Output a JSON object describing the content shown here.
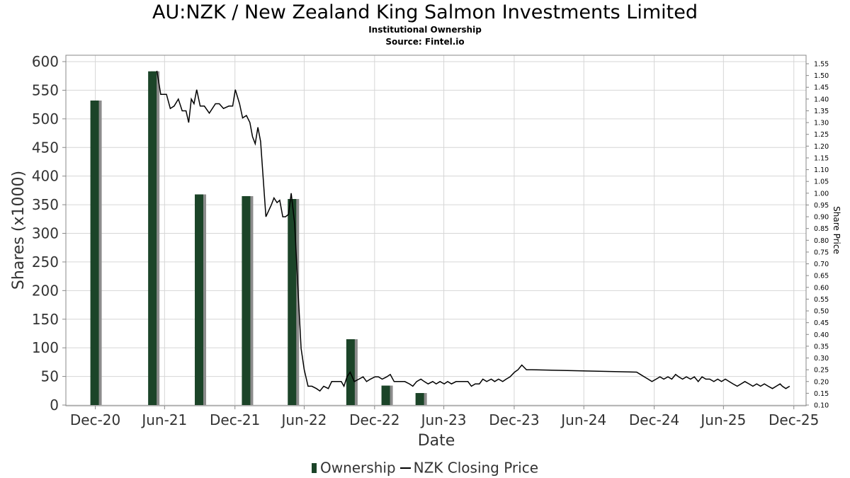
{
  "title": "AU:NZK / New Zealand King Salmon Investments Limited",
  "subtitle": "Institutional Ownership",
  "source": "Source: Fintel.io",
  "legend": {
    "ownership": "Ownership",
    "price": "NZK Closing Price"
  },
  "colors": {
    "bar": "#1b4428",
    "bar_shadow": "#8c8c8c",
    "line": "#000000",
    "grid": "#d6d6d6",
    "axis": "#888888"
  },
  "chart_data": {
    "type": "bar",
    "xlabel": "Date",
    "ylabel": "Shares (x1000)",
    "y2label": "Share Price",
    "x_ticks": [
      "Dec-20",
      "Jun-21",
      "Dec-21",
      "Jun-22",
      "Dec-22",
      "Jun-23",
      "Dec-23",
      "Jun-24",
      "Dec-24",
      "Jun-25",
      "Dec-25"
    ],
    "ylim": [
      0,
      600
    ],
    "y_ticks": [
      0,
      50,
      100,
      150,
      200,
      250,
      300,
      350,
      400,
      450,
      500,
      550,
      600
    ],
    "y2lim": [
      0.1,
      1.55
    ],
    "y2_ticks": [
      "0.10",
      "0.15",
      "0.20",
      "0.25",
      "0.30",
      "0.35",
      "0.40",
      "0.45",
      "0.50",
      "0.55",
      "0.60",
      "0.65",
      "0.70",
      "0.75",
      "0.80",
      "0.85",
      "0.90",
      "0.95",
      "1.00",
      "1.05",
      "1.10",
      "1.15",
      "1.20",
      "1.25",
      "1.30",
      "1.35",
      "1.40",
      "1.45",
      "1.50",
      "1.55"
    ],
    "grid": true,
    "legend_position": "bottom",
    "series": [
      {
        "name": "Ownership",
        "type": "bar",
        "axis": "left",
        "points": [
          {
            "x": "2020-12-31",
            "y": 532
          },
          {
            "x": "2021-05-31",
            "y": 583
          },
          {
            "x": "2021-09-30",
            "y": 368
          },
          {
            "x": "2022-01-31",
            "y": 365
          },
          {
            "x": "2022-05-31",
            "y": 360
          },
          {
            "x": "2022-10-31",
            "y": 115
          },
          {
            "x": "2023-01-31",
            "y": 34
          },
          {
            "x": "2023-04-30",
            "y": 21
          }
        ]
      },
      {
        "name": "NZK Closing Price",
        "type": "line",
        "axis": "right",
        "points": [
          {
            "x": "2021-06-10",
            "y": 1.52
          },
          {
            "x": "2021-06-20",
            "y": 1.42
          },
          {
            "x": "2021-07-05",
            "y": 1.42
          },
          {
            "x": "2021-07-15",
            "y": 1.36
          },
          {
            "x": "2021-07-25",
            "y": 1.37
          },
          {
            "x": "2021-08-05",
            "y": 1.4
          },
          {
            "x": "2021-08-15",
            "y": 1.35
          },
          {
            "x": "2021-08-25",
            "y": 1.35
          },
          {
            "x": "2021-09-01",
            "y": 1.3
          },
          {
            "x": "2021-09-08",
            "y": 1.4
          },
          {
            "x": "2021-09-15",
            "y": 1.38
          },
          {
            "x": "2021-09-22",
            "y": 1.44
          },
          {
            "x": "2021-10-01",
            "y": 1.37
          },
          {
            "x": "2021-10-12",
            "y": 1.37
          },
          {
            "x": "2021-10-25",
            "y": 1.34
          },
          {
            "x": "2021-11-10",
            "y": 1.38
          },
          {
            "x": "2021-11-20",
            "y": 1.38
          },
          {
            "x": "2021-12-01",
            "y": 1.36
          },
          {
            "x": "2021-12-15",
            "y": 1.37
          },
          {
            "x": "2021-12-25",
            "y": 1.37
          },
          {
            "x": "2022-01-01",
            "y": 1.44
          },
          {
            "x": "2022-01-12",
            "y": 1.38
          },
          {
            "x": "2022-01-20",
            "y": 1.32
          },
          {
            "x": "2022-01-30",
            "y": 1.33
          },
          {
            "x": "2022-02-08",
            "y": 1.3
          },
          {
            "x": "2022-02-15",
            "y": 1.24
          },
          {
            "x": "2022-02-22",
            "y": 1.21
          },
          {
            "x": "2022-03-01",
            "y": 1.28
          },
          {
            "x": "2022-03-08",
            "y": 1.22
          },
          {
            "x": "2022-03-22",
            "y": 0.9
          },
          {
            "x": "2022-04-05",
            "y": 0.95
          },
          {
            "x": "2022-04-12",
            "y": 0.98
          },
          {
            "x": "2022-04-20",
            "y": 0.96
          },
          {
            "x": "2022-04-27",
            "y": 0.97
          },
          {
            "x": "2022-05-05",
            "y": 0.9
          },
          {
            "x": "2022-05-12",
            "y": 0.9
          },
          {
            "x": "2022-05-20",
            "y": 0.91
          },
          {
            "x": "2022-05-27",
            "y": 1.0
          },
          {
            "x": "2022-06-05",
            "y": 0.87
          },
          {
            "x": "2022-06-15",
            "y": 0.55
          },
          {
            "x": "2022-06-22",
            "y": 0.34
          },
          {
            "x": "2022-06-30",
            "y": 0.25
          },
          {
            "x": "2022-07-10",
            "y": 0.18
          },
          {
            "x": "2022-07-20",
            "y": 0.18
          },
          {
            "x": "2022-08-01",
            "y": 0.17
          },
          {
            "x": "2022-08-10",
            "y": 0.16
          },
          {
            "x": "2022-08-20",
            "y": 0.18
          },
          {
            "x": "2022-09-01",
            "y": 0.17
          },
          {
            "x": "2022-09-10",
            "y": 0.2
          },
          {
            "x": "2022-09-25",
            "y": 0.2
          },
          {
            "x": "2022-10-05",
            "y": 0.2
          },
          {
            "x": "2022-10-12",
            "y": 0.18
          },
          {
            "x": "2022-10-20",
            "y": 0.22
          },
          {
            "x": "2022-10-28",
            "y": 0.24
          },
          {
            "x": "2022-11-08",
            "y": 0.2
          },
          {
            "x": "2022-11-20",
            "y": 0.21
          },
          {
            "x": "2022-12-01",
            "y": 0.22
          },
          {
            "x": "2022-12-10",
            "y": 0.2
          },
          {
            "x": "2022-12-20",
            "y": 0.21
          },
          {
            "x": "2023-01-01",
            "y": 0.22
          },
          {
            "x": "2023-01-10",
            "y": 0.22
          },
          {
            "x": "2023-01-20",
            "y": 0.21
          },
          {
            "x": "2023-02-01",
            "y": 0.22
          },
          {
            "x": "2023-02-10",
            "y": 0.23
          },
          {
            "x": "2023-02-20",
            "y": 0.2
          },
          {
            "x": "2023-03-01",
            "y": 0.2
          },
          {
            "x": "2023-03-10",
            "y": 0.2
          },
          {
            "x": "2023-03-20",
            "y": 0.2
          },
          {
            "x": "2023-04-01",
            "y": 0.19
          },
          {
            "x": "2023-04-10",
            "y": 0.18
          },
          {
            "x": "2023-04-20",
            "y": 0.2
          },
          {
            "x": "2023-05-01",
            "y": 0.21
          },
          {
            "x": "2023-05-10",
            "y": 0.2
          },
          {
            "x": "2023-05-20",
            "y": 0.19
          },
          {
            "x": "2023-06-01",
            "y": 0.2
          },
          {
            "x": "2023-06-10",
            "y": 0.19
          },
          {
            "x": "2023-06-20",
            "y": 0.2
          },
          {
            "x": "2023-07-01",
            "y": 0.19
          },
          {
            "x": "2023-07-10",
            "y": 0.2
          },
          {
            "x": "2023-07-20",
            "y": 0.19
          },
          {
            "x": "2023-08-01",
            "y": 0.2
          },
          {
            "x": "2023-08-10",
            "y": 0.2
          },
          {
            "x": "2023-08-20",
            "y": 0.2
          },
          {
            "x": "2023-09-01",
            "y": 0.2
          },
          {
            "x": "2023-09-10",
            "y": 0.18
          },
          {
            "x": "2023-09-20",
            "y": 0.19
          },
          {
            "x": "2023-10-01",
            "y": 0.19
          },
          {
            "x": "2023-10-10",
            "y": 0.21
          },
          {
            "x": "2023-10-20",
            "y": 0.2
          },
          {
            "x": "2023-11-01",
            "y": 0.21
          },
          {
            "x": "2023-11-10",
            "y": 0.2
          },
          {
            "x": "2023-11-20",
            "y": 0.21
          },
          {
            "x": "2023-12-01",
            "y": 0.2
          },
          {
            "x": "2023-12-10",
            "y": 0.21
          },
          {
            "x": "2023-12-20",
            "y": 0.22
          },
          {
            "x": "2024-01-01",
            "y": 0.24
          },
          {
            "x": "2024-01-10",
            "y": 0.25
          },
          {
            "x": "2024-01-20",
            "y": 0.27
          },
          {
            "x": "2024-02-01",
            "y": 0.25
          },
          {
            "x": "2024-02-15",
            "y": 0.25
          },
          {
            "x": "2024-11-15",
            "y": 0.24
          },
          {
            "x": "2024-11-25",
            "y": 0.23
          },
          {
            "x": "2024-12-05",
            "y": 0.22
          },
          {
            "x": "2024-12-15",
            "y": 0.21
          },
          {
            "x": "2024-12-25",
            "y": 0.2
          },
          {
            "x": "2025-01-05",
            "y": 0.21
          },
          {
            "x": "2025-01-15",
            "y": 0.22
          },
          {
            "x": "2025-01-25",
            "y": 0.21
          },
          {
            "x": "2025-02-05",
            "y": 0.22
          },
          {
            "x": "2025-02-15",
            "y": 0.21
          },
          {
            "x": "2025-02-25",
            "y": 0.23
          },
          {
            "x": "2025-03-05",
            "y": 0.22
          },
          {
            "x": "2025-03-15",
            "y": 0.21
          },
          {
            "x": "2025-03-25",
            "y": 0.22
          },
          {
            "x": "2025-04-05",
            "y": 0.21
          },
          {
            "x": "2025-04-15",
            "y": 0.22
          },
          {
            "x": "2025-04-25",
            "y": 0.2
          },
          {
            "x": "2025-05-05",
            "y": 0.22
          },
          {
            "x": "2025-05-15",
            "y": 0.21
          },
          {
            "x": "2025-05-25",
            "y": 0.21
          },
          {
            "x": "2025-06-05",
            "y": 0.2
          },
          {
            "x": "2025-06-15",
            "y": 0.21
          },
          {
            "x": "2025-06-25",
            "y": 0.2
          },
          {
            "x": "2025-07-05",
            "y": 0.21
          },
          {
            "x": "2025-07-15",
            "y": 0.2
          },
          {
            "x": "2025-07-25",
            "y": 0.19
          },
          {
            "x": "2025-08-05",
            "y": 0.18
          },
          {
            "x": "2025-08-15",
            "y": 0.19
          },
          {
            "x": "2025-08-25",
            "y": 0.2
          },
          {
            "x": "2025-09-05",
            "y": 0.19
          },
          {
            "x": "2025-09-15",
            "y": 0.18
          },
          {
            "x": "2025-09-25",
            "y": 0.19
          },
          {
            "x": "2025-10-05",
            "y": 0.18
          },
          {
            "x": "2025-10-15",
            "y": 0.19
          },
          {
            "x": "2025-10-25",
            "y": 0.18
          },
          {
            "x": "2025-11-05",
            "y": 0.17
          },
          {
            "x": "2025-11-15",
            "y": 0.18
          },
          {
            "x": "2025-11-25",
            "y": 0.19
          },
          {
            "x": "2025-12-01",
            "y": 0.18
          },
          {
            "x": "2025-12-10",
            "y": 0.17
          },
          {
            "x": "2025-12-20",
            "y": 0.18
          }
        ]
      }
    ]
  }
}
